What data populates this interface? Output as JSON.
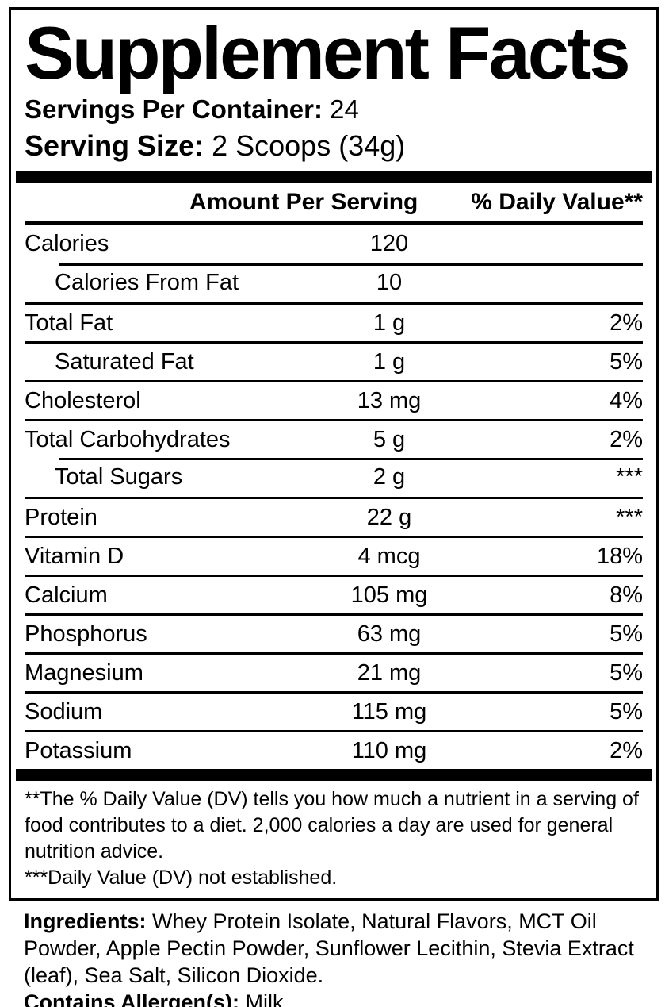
{
  "label": {
    "title": "Supplement Facts",
    "servings_per_container": {
      "label": "Servings Per Container:",
      "value": "24"
    },
    "serving_size": {
      "label": "Serving Size:",
      "value": "2 Scoops (34g)"
    },
    "table": {
      "headers": {
        "amount": "Amount Per Serving",
        "daily_value": "% Daily Value**"
      },
      "rows": [
        {
          "name": "Calories",
          "amount": "120",
          "dv": "",
          "indent": false,
          "divider": "none"
        },
        {
          "name": "Calories From Fat",
          "amount": "10",
          "dv": "",
          "indent": true,
          "divider": "indent"
        },
        {
          "name": "Total Fat",
          "amount": "1 g",
          "dv": "2%",
          "indent": false,
          "divider": "full"
        },
        {
          "name": "Saturated Fat",
          "amount": "1 g",
          "dv": "5%",
          "indent": true,
          "divider": "full"
        },
        {
          "name": "Cholesterol",
          "amount": "13 mg",
          "dv": "4%",
          "indent": false,
          "divider": "full"
        },
        {
          "name": "Total Carbohydrates",
          "amount": "5 g",
          "dv": "2%",
          "indent": false,
          "divider": "full"
        },
        {
          "name": "Total Sugars",
          "amount": "2 g",
          "dv": "***",
          "indent": true,
          "divider": "indent"
        },
        {
          "name": "Protein",
          "amount": "22 g",
          "dv": "***",
          "indent": false,
          "divider": "full"
        },
        {
          "name": "Vitamin D",
          "amount": "4 mcg",
          "dv": "18%",
          "indent": false,
          "divider": "full"
        },
        {
          "name": "Calcium",
          "amount": "105 mg",
          "dv": "8%",
          "indent": false,
          "divider": "full"
        },
        {
          "name": "Phosphorus",
          "amount": "63 mg",
          "dv": "5%",
          "indent": false,
          "divider": "full"
        },
        {
          "name": "Magnesium",
          "amount": "21 mg",
          "dv": "5%",
          "indent": false,
          "divider": "full"
        },
        {
          "name": "Sodium",
          "amount": "115 mg",
          "dv": "5%",
          "indent": false,
          "divider": "full"
        },
        {
          "name": "Potassium",
          "amount": "110 mg",
          "dv": "2%",
          "indent": false,
          "divider": "full"
        }
      ]
    },
    "footnotes": [
      "**The % Daily Value (DV) tells you how much a nutrient in a serving of food contributes to a diet. 2,000 calories a day are used for general nutrition advice.",
      "***Daily Value (DV) not established."
    ]
  },
  "ingredients": {
    "label": "Ingredients:",
    "text": " Whey Protein Isolate, Natural Flavors, MCT Oil Powder, Apple Pectin Powder, Sunflower Lecithin, Stevia Extract (leaf), Sea Salt, Silicon Dioxide."
  },
  "allergens": {
    "label": "Contains Allergen(s):",
    "value": " Milk"
  },
  "colors": {
    "ink": "#000000",
    "background": "#ffffff"
  }
}
